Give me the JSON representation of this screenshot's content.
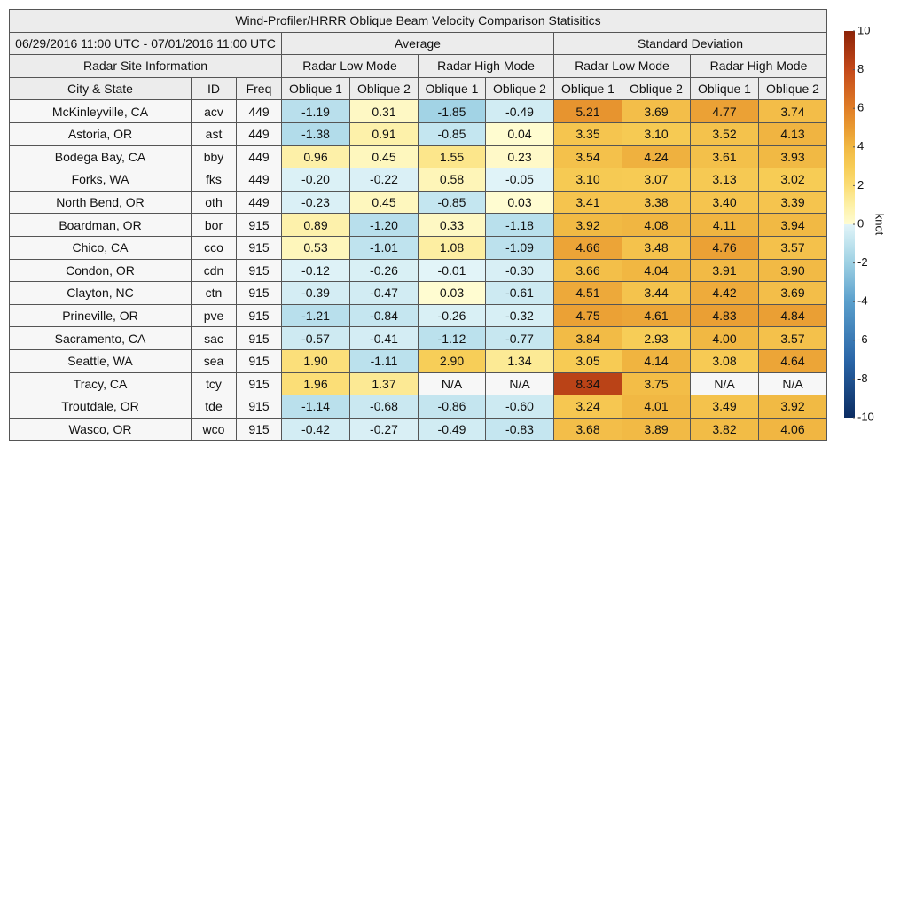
{
  "title": "Wind-Profiler/HRRR Oblique Beam Velocity Comparison Statisitics",
  "date_range": "06/29/2016 11:00 UTC - 07/01/2016 11:00 UTC",
  "groups": [
    "Average",
    "Standard Deviation"
  ],
  "site_info": "Radar Site Information",
  "modes": [
    "Radar Low Mode",
    "Radar High Mode",
    "Radar Low Mode",
    "Radar High Mode"
  ],
  "columns": [
    "City & State",
    "ID",
    "Freq",
    "Oblique 1",
    "Oblique 2",
    "Oblique 1",
    "Oblique 2",
    "Oblique 1",
    "Oblique 2",
    "Oblique 1",
    "Oblique 2"
  ],
  "table": {
    "rows": [
      [
        "McKinleyville, CA",
        "acv",
        "449",
        "-1.19",
        "0.31",
        "-1.85",
        "-0.49",
        "5.21",
        "3.69",
        "4.77",
        "3.74"
      ],
      [
        "Astoria, OR",
        "ast",
        "449",
        "-1.38",
        "0.91",
        "-0.85",
        "0.04",
        "3.35",
        "3.10",
        "3.52",
        "4.13"
      ],
      [
        "Bodega Bay, CA",
        "bby",
        "449",
        "0.96",
        "0.45",
        "1.55",
        "0.23",
        "3.54",
        "4.24",
        "3.61",
        "3.93"
      ],
      [
        "Forks, WA",
        "fks",
        "449",
        "-0.20",
        "-0.22",
        "0.58",
        "-0.05",
        "3.10",
        "3.07",
        "3.13",
        "3.02"
      ],
      [
        "North Bend, OR",
        "oth",
        "449",
        "-0.23",
        "0.45",
        "-0.85",
        "0.03",
        "3.41",
        "3.38",
        "3.40",
        "3.39"
      ],
      [
        "Boardman, OR",
        "bor",
        "915",
        "0.89",
        "-1.20",
        "0.33",
        "-1.18",
        "3.92",
        "4.08",
        "4.11",
        "3.94"
      ],
      [
        "Chico, CA",
        "cco",
        "915",
        "0.53",
        "-1.01",
        "1.08",
        "-1.09",
        "4.66",
        "3.48",
        "4.76",
        "3.57"
      ],
      [
        "Condon, OR",
        "cdn",
        "915",
        "-0.12",
        "-0.26",
        "-0.01",
        "-0.30",
        "3.66",
        "4.04",
        "3.91",
        "3.90"
      ],
      [
        "Clayton, NC",
        "ctn",
        "915",
        "-0.39",
        "-0.47",
        "0.03",
        "-0.61",
        "4.51",
        "3.44",
        "4.42",
        "3.69"
      ],
      [
        "Prineville, OR",
        "pve",
        "915",
        "-1.21",
        "-0.84",
        "-0.26",
        "-0.32",
        "4.75",
        "4.61",
        "4.83",
        "4.84"
      ],
      [
        "Sacramento, CA",
        "sac",
        "915",
        "-0.57",
        "-0.41",
        "-1.12",
        "-0.77",
        "3.84",
        "2.93",
        "4.00",
        "3.57"
      ],
      [
        "Seattle, WA",
        "sea",
        "915",
        "1.90",
        "-1.11",
        "2.90",
        "1.34",
        "3.05",
        "4.14",
        "3.08",
        "4.64"
      ],
      [
        "Tracy, CA",
        "tcy",
        "915",
        "1.96",
        "1.37",
        "N/A",
        "N/A",
        "8.34",
        "3.75",
        "N/A",
        "N/A"
      ],
      [
        "Troutdale, OR",
        "tde",
        "915",
        "-1.14",
        "-0.68",
        "-0.86",
        "-0.60",
        "3.24",
        "4.01",
        "3.49",
        "3.92"
      ],
      [
        "Wasco, OR",
        "wco",
        "915",
        "-0.42",
        "-0.27",
        "-0.49",
        "-0.83",
        "3.68",
        "3.89",
        "3.82",
        "4.06"
      ]
    ]
  },
  "colorbar": {
    "label": "knot",
    "lim": [
      -10,
      10
    ],
    "ticks": [
      10,
      8,
      6,
      4,
      2,
      0,
      -2,
      -4,
      -6,
      -8,
      -10
    ]
  }
}
